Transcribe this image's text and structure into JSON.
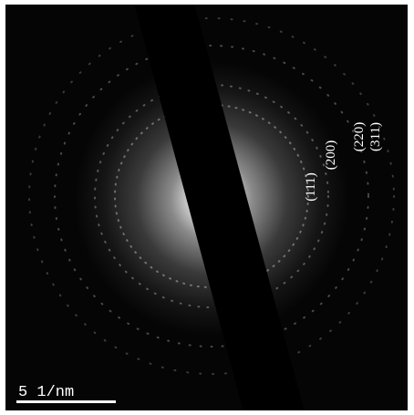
{
  "ring_labels": [
    "(111)",
    "(200)",
    "(220)",
    "(311)"
  ],
  "scale_bar": "5 1/nm"
}
